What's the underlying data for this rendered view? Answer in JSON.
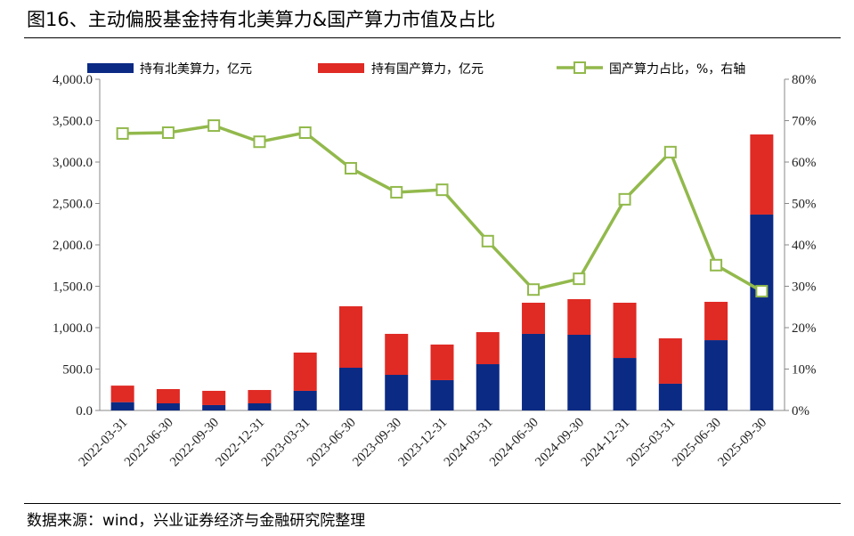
{
  "title": "图16、主动偏股基金持有北美算力&国产算力市值及占比",
  "source": "数据来源：wind，兴业证券经济与金融研究院整理",
  "chart_data": {
    "type": "bar+line",
    "categories": [
      "2022-03-31",
      "2022-06-30",
      "2022-09-30",
      "2022-12-31",
      "2023-03-31",
      "2023-06-30",
      "2023-09-30",
      "2023-12-31",
      "2024-03-31",
      "2024-06-30",
      "2024-09-30",
      "2024-12-31",
      "2025-03-31",
      "2025-06-30",
      "2025-09-30"
    ],
    "series": [
      {
        "name": "持有北美算力，亿元",
        "type": "stacked-bar",
        "axis": "left",
        "color": "#0b2a84",
        "values": [
          100,
          86,
          65,
          86,
          237,
          516,
          430,
          366,
          559,
          925,
          914,
          634,
          323,
          849,
          2366
        ]
      },
      {
        "name": "持有国产算力，亿元",
        "type": "stacked-bar",
        "axis": "left",
        "color": "#e02a24",
        "values": [
          200,
          172,
          172,
          161,
          462,
          742,
          495,
          430,
          387,
          376,
          430,
          667,
          548,
          463,
          967
        ]
      },
      {
        "name": "国产算力占比，%，右轴",
        "type": "line",
        "axis": "right",
        "color": "#92b94c",
        "values": [
          66.9,
          67.1,
          68.8,
          64.9,
          67.1,
          58.5,
          52.7,
          53.3,
          40.9,
          29.2,
          31.8,
          51.0,
          62.4,
          35.1,
          28.8
        ]
      }
    ],
    "ylim_left": [
      0,
      4000
    ],
    "yticks_left": [
      "0.0",
      "500.0",
      "1,000.0",
      "1,500.0",
      "2,000.0",
      "2,500.0",
      "3,000.0",
      "3,500.0",
      "4,000.0"
    ],
    "ylim_right": [
      0,
      80
    ],
    "yticks_right": [
      "0%",
      "10%",
      "20%",
      "30%",
      "40%",
      "50%",
      "60%",
      "70%",
      "80%"
    ],
    "grid": false,
    "legend": "top"
  }
}
